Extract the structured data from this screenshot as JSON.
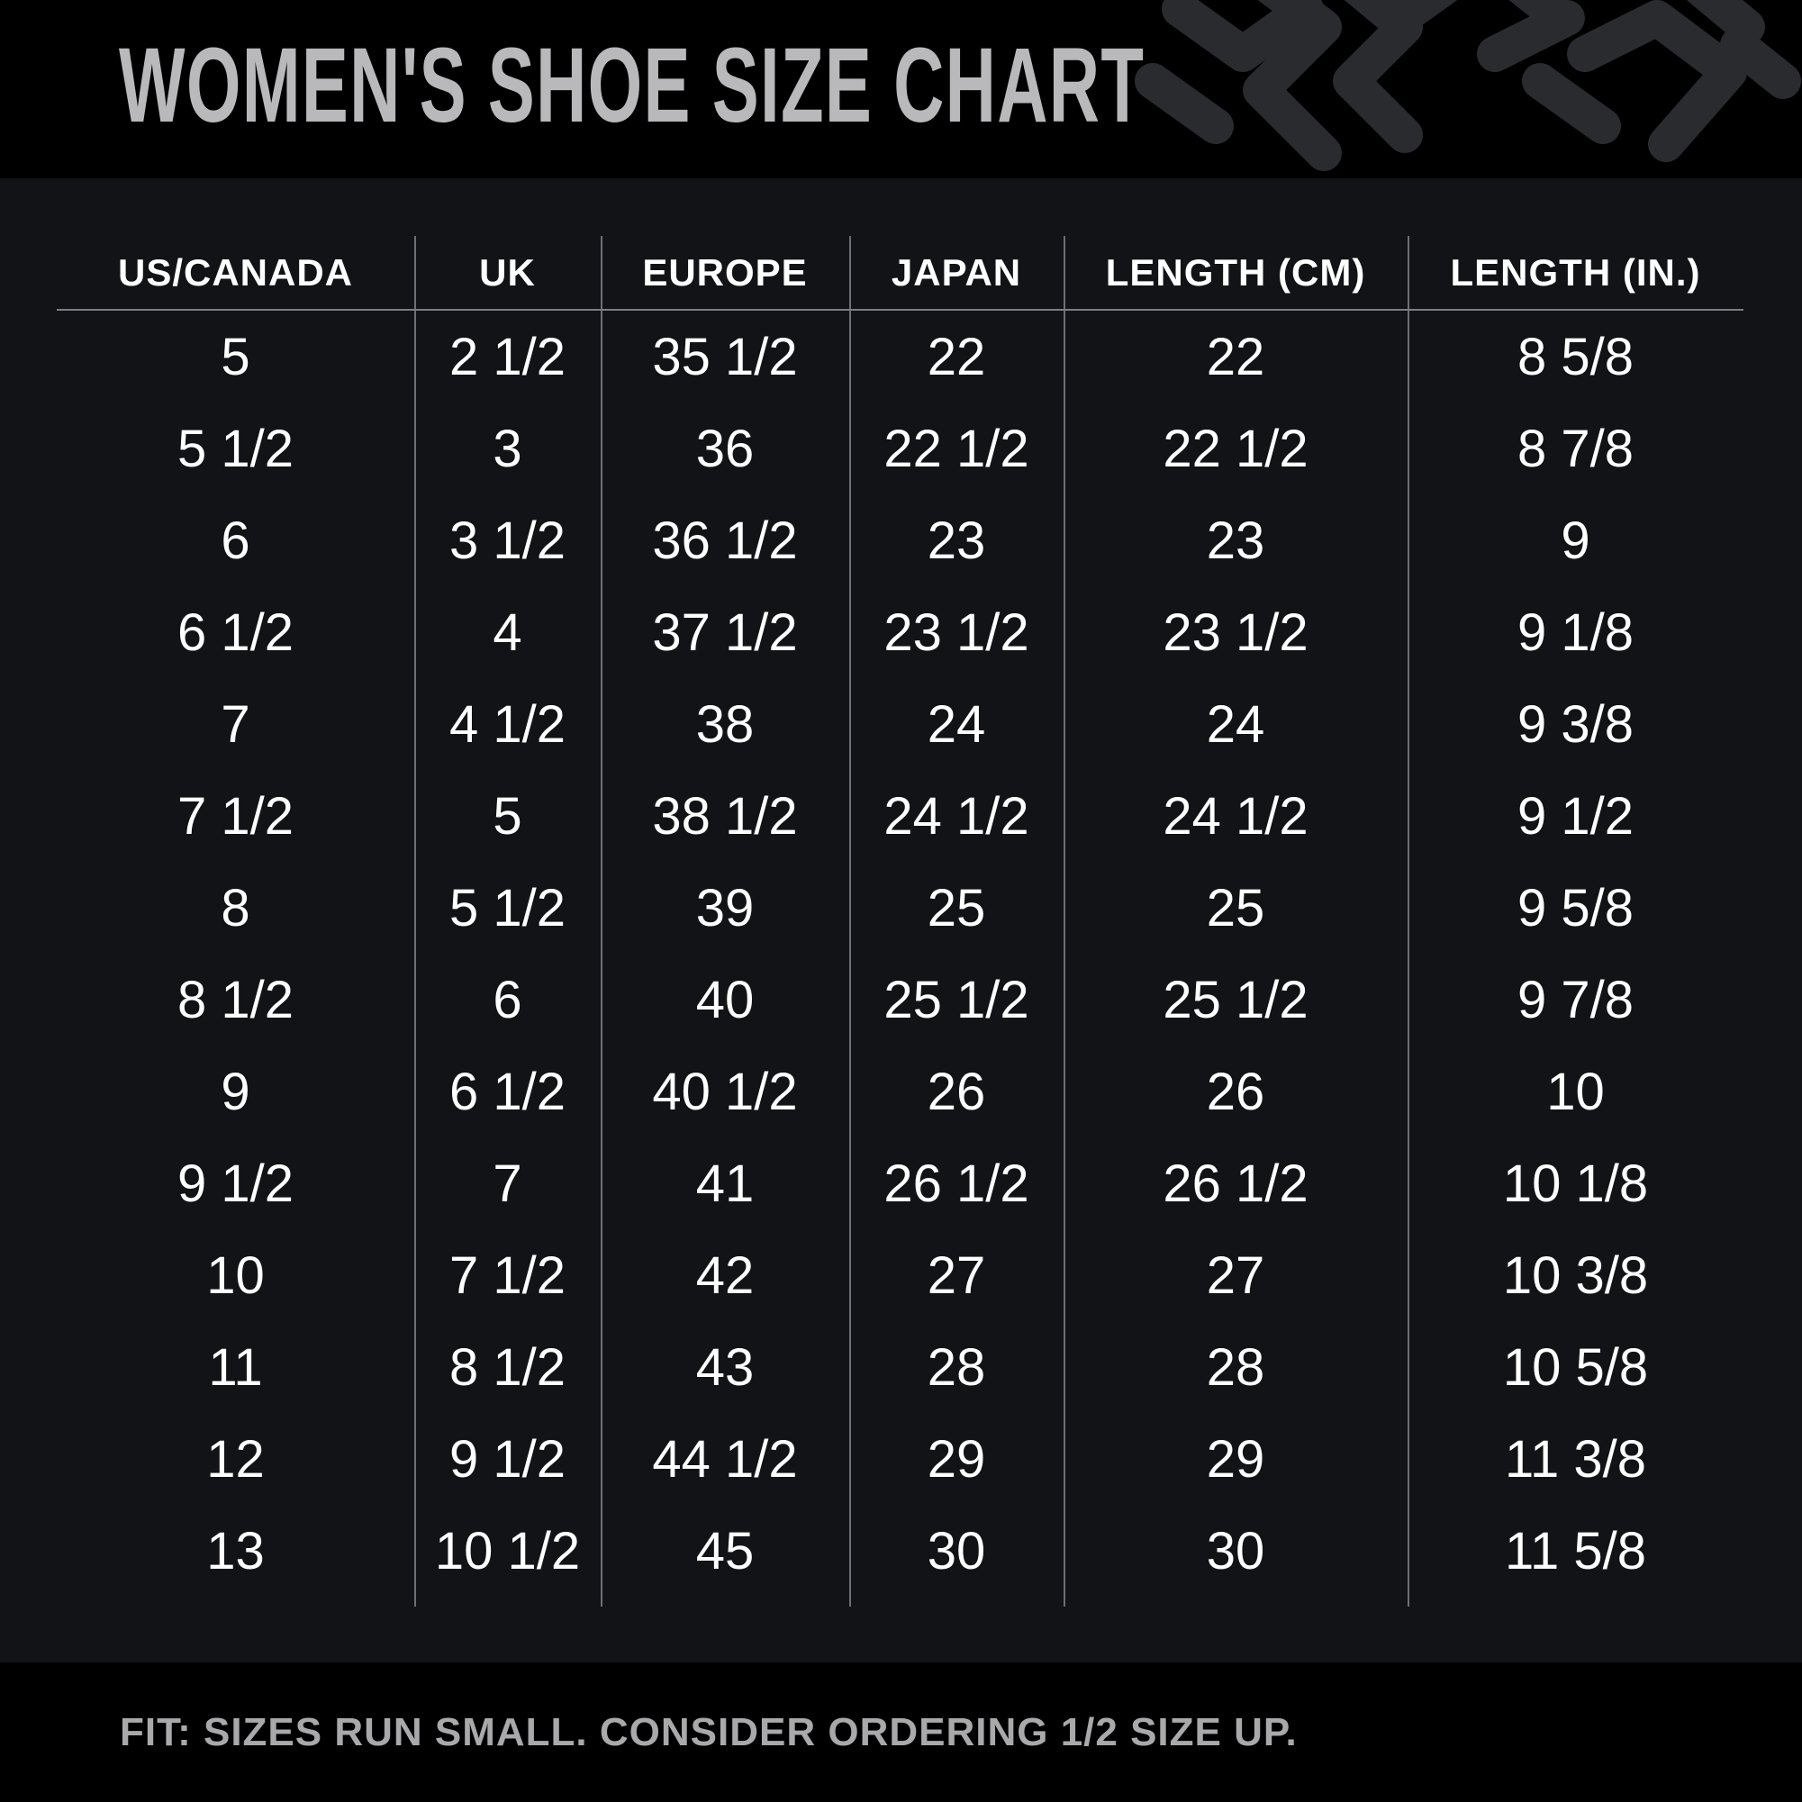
{
  "title": "WOMEN'S SHOE SIZE CHART",
  "colors": {
    "header_bg": "#000000",
    "body_bg": "#111317",
    "title_text": "#b9b9bb",
    "cell_text": "#ffffff",
    "footnote_text": "#a9a9ab",
    "pattern": "#2a2b2e"
  },
  "decoration": "chevron-pattern",
  "table": {
    "headers": [
      "US/CANADA",
      "UK",
      "EUROPE",
      "JAPAN",
      "LENGTH (CM)",
      "LENGTH (IN.)"
    ],
    "rows": [
      [
        "5",
        "2 1/2",
        "35 1/2",
        "22",
        "22",
        "8 5/8"
      ],
      [
        "5 1/2",
        "3",
        "36",
        "22 1/2",
        "22 1/2",
        "8 7/8"
      ],
      [
        "6",
        "3 1/2",
        "36 1/2",
        "23",
        "23",
        "9"
      ],
      [
        "6 1/2",
        "4",
        "37 1/2",
        "23 1/2",
        "23 1/2",
        "9 1/8"
      ],
      [
        "7",
        "4 1/2",
        "38",
        "24",
        "24",
        "9 3/8"
      ],
      [
        "7 1/2",
        "5",
        "38 1/2",
        "24 1/2",
        "24 1/2",
        "9 1/2"
      ],
      [
        "8",
        "5 1/2",
        "39",
        "25",
        "25",
        "9 5/8"
      ],
      [
        "8 1/2",
        "6",
        "40",
        "25 1/2",
        "25 1/2",
        "9 7/8"
      ],
      [
        "9",
        "6 1/2",
        "40 1/2",
        "26",
        "26",
        "10"
      ],
      [
        "9 1/2",
        "7",
        "41",
        "26 1/2",
        "26 1/2",
        "10 1/8"
      ],
      [
        "10",
        "7 1/2",
        "42",
        "27",
        "27",
        "10 3/8"
      ],
      [
        "11",
        "8 1/2",
        "43",
        "28",
        "28",
        "10 5/8"
      ],
      [
        "12",
        "9 1/2",
        "44 1/2",
        "29",
        "29",
        "11 3/8"
      ],
      [
        "13",
        "10 1/2",
        "45",
        "30",
        "30",
        "11 5/8"
      ]
    ]
  },
  "footnote": "FIT: SIZES RUN SMALL. CONSIDER ORDERING 1/2 SIZE UP."
}
